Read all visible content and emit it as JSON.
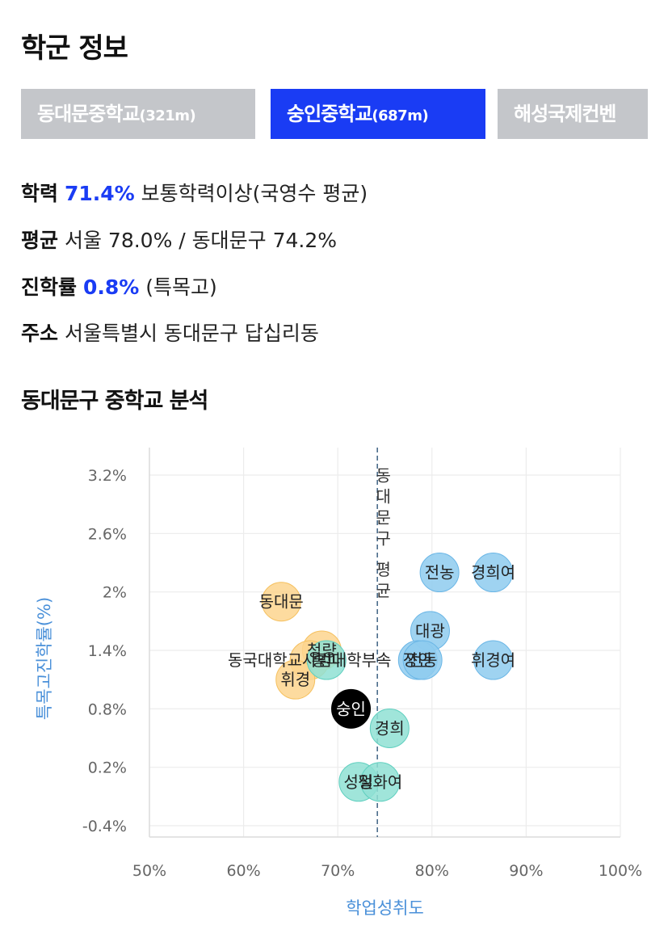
{
  "page": {
    "title": "학군 정보"
  },
  "tabs": [
    {
      "name": "동대문중학교",
      "distance": "(321m)",
      "active": false
    },
    {
      "name": "숭인중학교",
      "distance": "(687m)",
      "active": true
    },
    {
      "name": "해성국제컨벤",
      "distance": "",
      "active": false
    }
  ],
  "info": {
    "academic": {
      "label": "학력",
      "value": "71.4%",
      "desc": "보통학력이상(국영수 평균)"
    },
    "average": {
      "label": "평균",
      "text": "서울 78.0% / 동대문구 74.2%"
    },
    "advancement": {
      "label": "진학률",
      "value": "0.8%",
      "desc": "(특목고)"
    },
    "address": {
      "label": "주소",
      "text": "서울특별시 동대문구 답십리동"
    }
  },
  "section": {
    "title": "동대문구 중학교 분석"
  },
  "colors": {
    "accent": "#1a3cf4",
    "tab_inactive": "#c4c6ca",
    "blue_group": "#8ecbef",
    "teal_group": "#8fe0d4",
    "orange_group": "#fdd58e",
    "selected": "#000000",
    "axis_title": "#4a90d9"
  },
  "chart_data": {
    "type": "scatter",
    "xlabel": "학업성취도",
    "ylabel": "특목고진학률(%)",
    "xlim": [
      50,
      100
    ],
    "ylim": [
      -0.6,
      3.6
    ],
    "xticks": [
      "50%",
      "60%",
      "70%",
      "80%",
      "90%",
      "100%"
    ],
    "yticks": [
      "3.2%",
      "2.6%",
      "2%",
      "1.4%",
      "0.8%",
      "0.2%",
      "-0.4%"
    ],
    "ytick_values": [
      3.2,
      2.6,
      2.0,
      1.4,
      0.8,
      0.2,
      -0.4
    ],
    "reference_line": {
      "x": 74.2,
      "label": "동대문구 평균"
    },
    "grid": true,
    "points": [
      {
        "label": "전농",
        "x": 80.8,
        "y": 2.2,
        "group": "blue"
      },
      {
        "label": "경희여",
        "x": 86.5,
        "y": 2.2,
        "group": "blue"
      },
      {
        "label": "대광",
        "x": 79.8,
        "y": 1.6,
        "group": "blue"
      },
      {
        "label": "휘경여",
        "x": 86.5,
        "y": 1.3,
        "group": "blue"
      },
      {
        "label": "장안",
        "x": 78.5,
        "y": 1.3,
        "group": "blue"
      },
      {
        "label": "전동",
        "x": 79.0,
        "y": 1.3,
        "group": "blue"
      },
      {
        "label": "청량",
        "x": 68.3,
        "y": 1.4,
        "group": "orange"
      },
      {
        "label": "동대문",
        "x": 64.0,
        "y": 1.9,
        "group": "orange"
      },
      {
        "label": "동국대학교사범대학부속",
        "x": 67.0,
        "y": 1.3,
        "group": "orange"
      },
      {
        "label": "휘경",
        "x": 65.5,
        "y": 1.1,
        "group": "orange"
      },
      {
        "label": "홍파",
        "x": 68.8,
        "y": 1.3,
        "group": "teal"
      },
      {
        "label": "경희",
        "x": 75.5,
        "y": 0.6,
        "group": "teal"
      },
      {
        "label": "성일",
        "x": 72.2,
        "y": 0.05,
        "group": "teal"
      },
      {
        "label": "정화여",
        "x": 74.5,
        "y": 0.05,
        "group": "teal"
      },
      {
        "label": "숭인",
        "x": 71.4,
        "y": 0.8,
        "group": "selected"
      }
    ]
  }
}
